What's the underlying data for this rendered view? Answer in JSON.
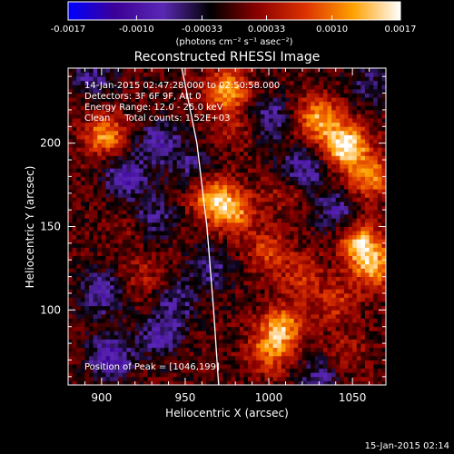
{
  "chart_data": {
    "type": "heatmap",
    "title": "Reconstructed RHESSI Image",
    "xlabel": "Heliocentric X (arcsec)",
    "ylabel": "Heliocentric Y (arcsec)",
    "xlim": [
      880,
      1070
    ],
    "ylim": [
      55,
      245
    ],
    "xticks": [
      900,
      950,
      1000,
      1050
    ],
    "yticks": [
      100,
      150,
      200
    ],
    "colorbar": {
      "min": -0.0017,
      "max": 0.0017,
      "ticks": [
        "-0.0017",
        "-0.0010",
        "-0.00033",
        "0.00033",
        "0.0010",
        "0.0017"
      ],
      "tick_values": [
        -0.0017,
        -0.001,
        -0.00033,
        0.00033,
        0.001,
        0.0017
      ],
      "units_label": "(photons cm⁻² s⁻¹ asec⁻²)",
      "colors": [
        "#0000ff",
        "#3c0096",
        "#5a28b4",
        "#000000",
        "#8c0000",
        "#dc3200",
        "#ffa000",
        "#ffffff"
      ]
    },
    "annotations": [
      "14-Jan-2015 02:47:28.000 to 02:50:58.000",
      "Detectors: 3F 6F 9F, Att 0",
      "Energy Range: 12.0 - 25.0 keV",
      "Clean     Total counts: 1.52E+03"
    ],
    "peak_label": "Position of Peak = [1046,199]",
    "limb": {
      "label": "",
      "points": [
        [
          948,
          245
        ],
        [
          957,
          200
        ],
        [
          963,
          150
        ],
        [
          967,
          100
        ],
        [
          970,
          55
        ]
      ]
    },
    "sources": [
      {
        "x": 1046,
        "y": 199,
        "amp": 0.0017
      },
      {
        "x": 1030,
        "y": 215,
        "amp": 0.0012
      },
      {
        "x": 1060,
        "y": 180,
        "amp": 0.0011
      },
      {
        "x": 975,
        "y": 232,
        "amp": 0.0012
      },
      {
        "x": 967,
        "y": 167,
        "amp": 0.0013
      },
      {
        "x": 980,
        "y": 158,
        "amp": 0.001
      },
      {
        "x": 1055,
        "y": 140,
        "amp": 0.0013
      },
      {
        "x": 1063,
        "y": 125,
        "amp": 0.0011
      },
      {
        "x": 1008,
        "y": 90,
        "amp": 0.0012
      },
      {
        "x": 1000,
        "y": 75,
        "amp": 0.0009
      },
      {
        "x": 902,
        "y": 205,
        "amp": 0.0011
      },
      {
        "x": 1000,
        "y": 135,
        "amp": 0.0007
      },
      {
        "x": 1020,
        "y": 120,
        "amp": 0.0006
      },
      {
        "x": 1040,
        "y": 105,
        "amp": 0.0006
      },
      {
        "x": 925,
        "y": 120,
        "amp": 0.0004
      },
      {
        "x": 920,
        "y": 150,
        "amp": 0.0003
      },
      {
        "x": 1045,
        "y": 75,
        "amp": 0.0004
      },
      {
        "x": 1010,
        "y": 170,
        "amp": 0.0004
      },
      {
        "x": 980,
        "y": 210,
        "amp": 0.0004
      },
      {
        "x": 915,
        "y": 180,
        "amp": -0.0009
      },
      {
        "x": 935,
        "y": 200,
        "amp": -0.0008
      },
      {
        "x": 930,
        "y": 155,
        "amp": -0.0007
      },
      {
        "x": 900,
        "y": 110,
        "amp": -0.0008
      },
      {
        "x": 905,
        "y": 72,
        "amp": -0.001
      },
      {
        "x": 935,
        "y": 85,
        "amp": -0.0007
      },
      {
        "x": 945,
        "y": 105,
        "amp": -0.0006
      },
      {
        "x": 965,
        "y": 125,
        "amp": -0.0006
      },
      {
        "x": 1000,
        "y": 215,
        "amp": -0.0007
      },
      {
        "x": 1020,
        "y": 185,
        "amp": -0.0008
      },
      {
        "x": 1040,
        "y": 160,
        "amp": -0.0007
      },
      {
        "x": 1030,
        "y": 60,
        "amp": -0.0006
      },
      {
        "x": 955,
        "y": 185,
        "amp": -0.0005
      },
      {
        "x": 895,
        "y": 240,
        "amp": -0.0006
      },
      {
        "x": 1060,
        "y": 235,
        "amp": -0.0005
      }
    ]
  },
  "footer": {
    "timestamp": "15-Jan-2015 02:14"
  }
}
